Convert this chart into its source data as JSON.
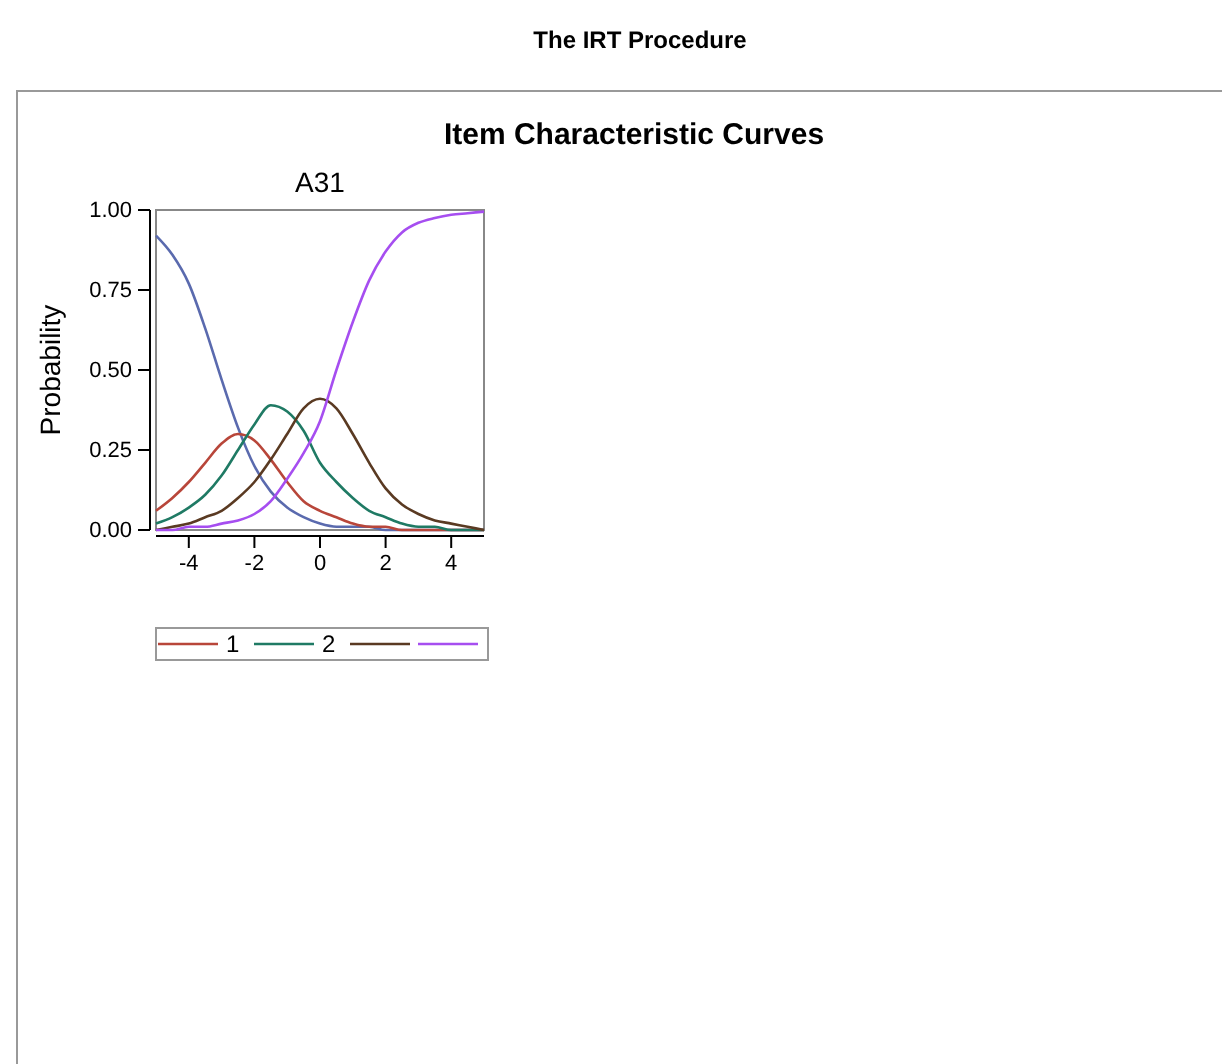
{
  "chart_data": {
    "type": "line",
    "title": "The IRT Procedure",
    "subtitle": "Item Characteristic Curves",
    "ylabel": "Probability",
    "annotations": [
      "A31"
    ],
    "x": [
      -5,
      -4.5,
      -4,
      -3.5,
      -3,
      -2.5,
      -2,
      -1.5,
      -1,
      -0.5,
      0,
      0.5,
      1,
      1.5,
      2,
      2.5,
      3,
      3.5,
      4,
      4.5,
      5
    ],
    "series": [
      {
        "color": "#5a6aae",
        "values": [
          0.92,
          0.86,
          0.77,
          0.63,
          0.47,
          0.32,
          0.2,
          0.12,
          0.07,
          0.04,
          0.02,
          0.01,
          0.01,
          0.01,
          0,
          0,
          0,
          0,
          0,
          0,
          0
        ]
      },
      {
        "name": "1",
        "color": "#b8463a",
        "values": [
          0.06,
          0.1,
          0.15,
          0.21,
          0.27,
          0.3,
          0.28,
          0.22,
          0.15,
          0.09,
          0.06,
          0.04,
          0.02,
          0.01,
          0.01,
          0,
          0,
          0,
          0,
          0,
          0
        ]
      },
      {
        "name": "2",
        "color": "#1f7a64",
        "values": [
          0.02,
          0.04,
          0.07,
          0.11,
          0.17,
          0.25,
          0.33,
          0.39,
          0.37,
          0.31,
          0.21,
          0.15,
          0.1,
          0.06,
          0.04,
          0.02,
          0.01,
          0.01,
          0,
          0,
          0
        ]
      },
      {
        "color": "#5a3a22",
        "values": [
          0,
          0.01,
          0.02,
          0.04,
          0.06,
          0.1,
          0.15,
          0.22,
          0.3,
          0.38,
          0.41,
          0.38,
          0.3,
          0.21,
          0.13,
          0.08,
          0.05,
          0.03,
          0.02,
          0.01,
          0
        ]
      },
      {
        "color": "#a64ef0",
        "values": [
          0,
          0,
          0.01,
          0.01,
          0.02,
          0.03,
          0.05,
          0.09,
          0.16,
          0.24,
          0.34,
          0.5,
          0.65,
          0.78,
          0.87,
          0.93,
          0.96,
          0.975,
          0.985,
          0.99,
          0.995
        ]
      }
    ],
    "xlim": [
      -5,
      5
    ],
    "xticks": [
      -4,
      -2,
      0,
      2,
      4
    ],
    "ylim": [
      0,
      1
    ],
    "yticks": [
      {
        "value": 0,
        "label": "0.00"
      },
      {
        "value": 0.25,
        "label": "0.25"
      },
      {
        "value": 0.5,
        "label": "0.50"
      },
      {
        "value": 0.75,
        "label": "0.75"
      },
      {
        "value": 1,
        "label": "1.00"
      }
    ],
    "legend": "bottom",
    "grid": false
  }
}
